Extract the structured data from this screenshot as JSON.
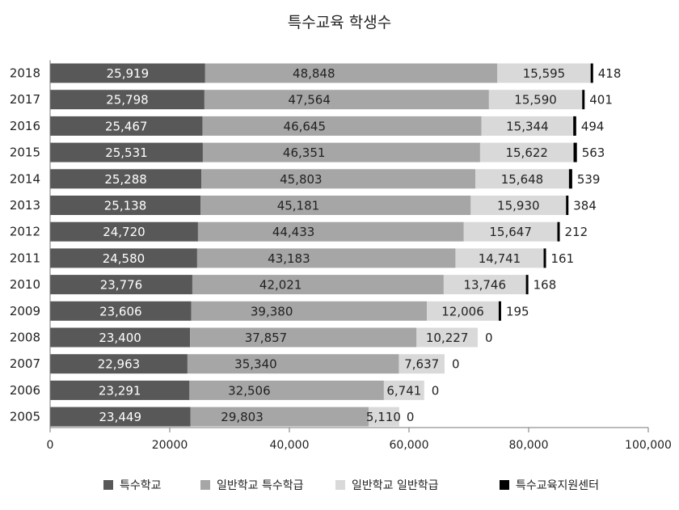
{
  "chart_data": {
    "type": "bar",
    "orientation": "horizontal",
    "stacked": true,
    "title": "특수교육 학생수",
    "xlabel": "",
    "ylabel": "",
    "categories": [
      "2018",
      "2017",
      "2016",
      "2015",
      "2014",
      "2013",
      "2012",
      "2011",
      "2010",
      "2009",
      "2008",
      "2007",
      "2006",
      "2005"
    ],
    "xlim": [
      0,
      100000
    ],
    "x_ticks": [
      "0",
      "20000",
      "40,000",
      "60,000",
      "80,000",
      "100,000"
    ],
    "grid": false,
    "legend_position": "bottom",
    "series": [
      {
        "name": "특수학교",
        "color": "#585858",
        "values": [
          25919,
          25798,
          25467,
          25531,
          25288,
          25138,
          24720,
          24580,
          23776,
          23606,
          23400,
          22963,
          23291,
          23449
        ],
        "labels": [
          "25,919",
          "25,798",
          "25,467",
          "25,531",
          "25,288",
          "25,138",
          "24,720",
          "24,580",
          "23,776",
          "23,606",
          "23,400",
          "22,963",
          "23,291",
          "23,449"
        ]
      },
      {
        "name": "일반학교 특수학급",
        "color": "#a6a6a6",
        "values": [
          48848,
          47564,
          46645,
          46351,
          45803,
          45181,
          44433,
          43183,
          42021,
          39380,
          37857,
          35340,
          32506,
          29803
        ],
        "labels": [
          "48,848",
          "47,564",
          "46,645",
          "46,351",
          "45,803",
          "45,181",
          "44,433",
          "43,183",
          "42,021",
          "39,380",
          "37,857",
          "35,340",
          "32,506",
          "29,803"
        ]
      },
      {
        "name": "일반학교 일반학급",
        "color": "#d9d9d9",
        "values": [
          15595,
          15590,
          15344,
          15622,
          15648,
          15930,
          15647,
          14741,
          13746,
          12006,
          10227,
          7637,
          6741,
          5110
        ],
        "labels": [
          "15,595",
          "15,590",
          "15,344",
          "15,622",
          "15,648",
          "15,930",
          "15,647",
          "14,741",
          "13,746",
          "12,006",
          "10,227",
          "7,637",
          "6,741",
          "5,110"
        ]
      },
      {
        "name": "특수교육지원센터",
        "color": "#000000",
        "values": [
          418,
          401,
          494,
          563,
          539,
          384,
          212,
          161,
          168,
          195,
          0,
          0,
          0,
          0
        ],
        "labels": [
          "418",
          "401",
          "494",
          "563",
          "539",
          "384",
          "212",
          "161",
          "168",
          "195",
          "0",
          "0",
          "0",
          "0"
        ]
      }
    ]
  }
}
